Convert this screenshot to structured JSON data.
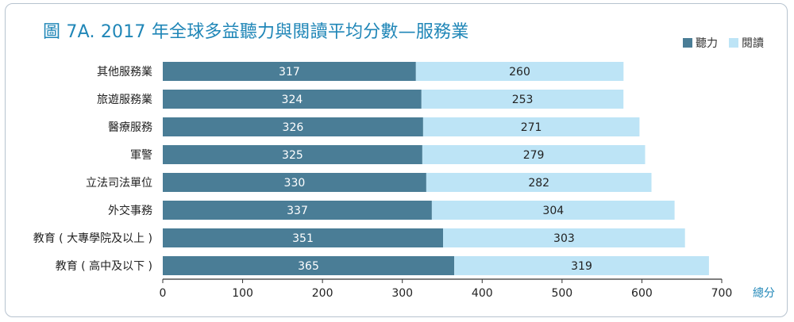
{
  "title": "圖 7A. 2017 年全球多益聽力與閱讀平均分數—服務業",
  "colors": {
    "listening": "#4a7d96",
    "reading": "#bde4f6",
    "label_on_dark": "#ffffff",
    "label_on_light": "#222222",
    "axis": "#333333",
    "title": "#1f86b7"
  },
  "chart_data": {
    "type": "bar",
    "orientation": "horizontal",
    "stacked": true,
    "title": "圖 7A. 2017 年全球多益聽力與閱讀平均分數—服務業",
    "xlabel": "總分",
    "ylabel": "",
    "xlim": [
      0,
      700
    ],
    "xticks": [
      0,
      100,
      200,
      300,
      400,
      500,
      600,
      700
    ],
    "legend_position": "top-right",
    "grid": false,
    "categories": [
      "其他服務業",
      "旅遊服務業",
      "醫療服務",
      "軍警",
      "立法司法單位",
      "外交事務",
      "教育 ( 大專學院及以上 )",
      "教育 ( 高中及以下 )"
    ],
    "series": [
      {
        "name": "聽力",
        "color": "#4a7d96",
        "values": [
          317,
          324,
          326,
          325,
          330,
          337,
          351,
          365
        ]
      },
      {
        "name": "閱讀",
        "color": "#bde4f6",
        "values": [
          260,
          253,
          271,
          279,
          282,
          304,
          303,
          319
        ]
      }
    ]
  }
}
